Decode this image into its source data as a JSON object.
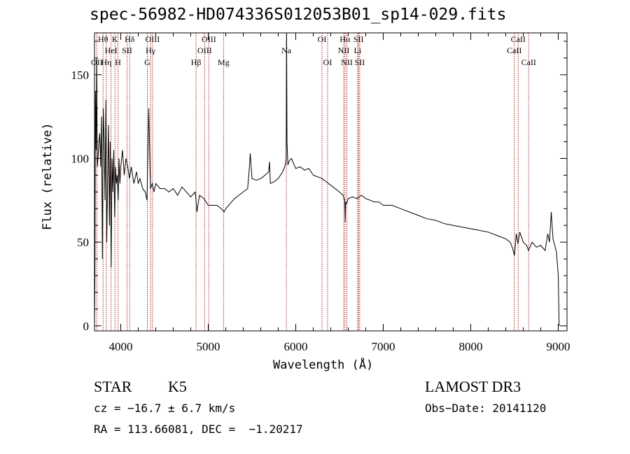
{
  "chart_data": {
    "type": "line",
    "title": "spec-56982-HD074336S012053B01_sp14-029.fits",
    "xlabel": "Wavelength (Å)",
    "ylabel": "Flux (relative)",
    "xlim": [
      3700,
      9100
    ],
    "ylim": [
      -3,
      175
    ],
    "xticks": [
      4000,
      5000,
      6000,
      7000,
      8000,
      9000
    ],
    "yticks": [
      0,
      50,
      100,
      150
    ],
    "grid": false,
    "line_color": "#000000",
    "marker_color": "#b22222",
    "series": [
      {
        "x": [
          3700,
          3705,
          3710,
          3718,
          3725,
          3732,
          3740,
          3750,
          3760,
          3770,
          3780,
          3790,
          3800,
          3810,
          3820,
          3830,
          3840,
          3850,
          3860,
          3870,
          3880,
          3890,
          3900,
          3910,
          3920,
          3930,
          3940,
          3950,
          3960,
          3970,
          3980,
          3990,
          4000,
          4020,
          4040,
          4060,
          4080,
          4100,
          4120,
          4150,
          4180,
          4200,
          4220,
          4250,
          4280,
          4300,
          4320,
          4340,
          4360,
          4380,
          4400,
          4450,
          4500,
          4550,
          4600,
          4650,
          4700,
          4750,
          4800,
          4850,
          4860,
          4870,
          4900,
          4950,
          5000,
          5050,
          5100,
          5150,
          5180,
          5200,
          5250,
          5300,
          5350,
          5400,
          5450,
          5470,
          5480,
          5500,
          5550,
          5600,
          5650,
          5690,
          5700,
          5710,
          5750,
          5800,
          5850,
          5880,
          5890,
          5895,
          5900,
          5910,
          5920,
          5950,
          6000,
          6050,
          6100,
          6150,
          6200,
          6250,
          6300,
          6350,
          6400,
          6450,
          6500,
          6540,
          6560,
          6565,
          6570,
          6580,
          6600,
          6650,
          6700,
          6750,
          6800,
          6850,
          6900,
          6950,
          7000,
          7100,
          7200,
          7300,
          7400,
          7500,
          7600,
          7700,
          7800,
          7900,
          8000,
          8100,
          8200,
          8300,
          8400,
          8450,
          8480,
          8500,
          8520,
          8540,
          8560,
          8600,
          8640,
          8660,
          8700,
          8750,
          8800,
          8850,
          8880,
          8900,
          8920,
          8940,
          8960,
          8980,
          9000,
          9010
        ],
        "y": [
          0,
          30,
          140,
          105,
          160,
          95,
          100,
          110,
          115,
          95,
          125,
          40,
          130,
          110,
          75,
          135,
          50,
          90,
          120,
          60,
          110,
          35,
          100,
          80,
          105,
          65,
          95,
          85,
          90,
          75,
          100,
          85,
          95,
          105,
          90,
          100,
          95,
          88,
          95,
          85,
          92,
          85,
          88,
          82,
          80,
          75,
          130,
          82,
          85,
          80,
          85,
          82,
          82,
          80,
          82,
          78,
          83,
          80,
          77,
          80,
          75,
          68,
          78,
          76,
          72,
          72,
          72,
          70,
          68,
          70,
          73,
          76,
          78,
          80,
          82,
          95,
          103,
          88,
          87,
          88,
          90,
          92,
          98,
          85,
          86,
          88,
          92,
          96,
          100,
          175,
          110,
          96,
          98,
          100,
          94,
          95,
          93,
          94,
          90,
          89,
          88,
          86,
          84,
          82,
          80,
          78,
          75,
          62,
          74,
          73,
          76,
          77,
          76,
          78,
          76,
          75,
          74,
          74,
          72,
          72,
          70,
          68,
          66,
          64,
          63,
          61,
          60,
          59,
          58,
          57,
          56,
          54,
          52,
          50,
          46,
          42,
          55,
          49,
          56,
          50,
          48,
          45,
          50,
          47,
          48,
          45,
          55,
          50,
          68,
          52,
          48,
          44,
          30,
          0
        ]
      }
    ],
    "lines": [
      {
        "wl": 3727,
        "labels": [
          {
            "row": 3,
            "text": "OII"
          }
        ]
      },
      {
        "wl": 3798,
        "labels": [
          {
            "row": 1,
            "text": "Hθ"
          }
        ]
      },
      {
        "wl": 3835,
        "labels": [
          {
            "row": 3,
            "text": "Hη"
          }
        ]
      },
      {
        "wl": 3889,
        "labels": [
          {
            "row": 2,
            "text": "HeI"
          }
        ]
      },
      {
        "wl": 3934,
        "labels": [
          {
            "row": 1,
            "text": "K"
          }
        ]
      },
      {
        "wl": 3969,
        "labels": [
          {
            "row": 3,
            "text": "H"
          }
        ]
      },
      {
        "wl": 4072,
        "labels": [
          {
            "row": 2,
            "text": "SII"
          }
        ]
      },
      {
        "wl": 4102,
        "labels": [
          {
            "row": 1,
            "text": "Hδ"
          }
        ]
      },
      {
        "wl": 4304,
        "labels": [
          {
            "row": 3,
            "text": "G"
          }
        ]
      },
      {
        "wl": 4341,
        "labels": [
          {
            "row": 2,
            "text": "Hγ"
          }
        ]
      },
      {
        "wl": 4363,
        "labels": [
          {
            "row": 1,
            "text": "OIII"
          }
        ]
      },
      {
        "wl": 4861,
        "labels": [
          {
            "row": 3,
            "text": "Hβ"
          }
        ]
      },
      {
        "wl": 4959,
        "labels": [
          {
            "row": 2,
            "text": "OIII"
          }
        ]
      },
      {
        "wl": 5007,
        "labels": [
          {
            "row": 1,
            "text": "OIII"
          }
        ]
      },
      {
        "wl": 5175,
        "labels": [
          {
            "row": 3,
            "text": "Mg"
          }
        ]
      },
      {
        "wl": 5893,
        "labels": [
          {
            "row": 2,
            "text": "Na"
          }
        ]
      },
      {
        "wl": 6300,
        "labels": [
          {
            "row": 1,
            "text": "OI"
          }
        ]
      },
      {
        "wl": 6364,
        "labels": [
          {
            "row": 3,
            "text": "OI"
          }
        ]
      },
      {
        "wl": 6548,
        "labels": [
          {
            "row": 2,
            "text": "NII"
          }
        ]
      },
      {
        "wl": 6563,
        "labels": [
          {
            "row": 1,
            "text": "Hα"
          }
        ]
      },
      {
        "wl": 6584,
        "labels": [
          {
            "row": 3,
            "text": "NII"
          }
        ]
      },
      {
        "wl": 6707,
        "labels": [
          {
            "row": 2,
            "text": "Li"
          }
        ]
      },
      {
        "wl": 6717,
        "labels": [
          {
            "row": 1,
            "text": "SII"
          }
        ]
      },
      {
        "wl": 6731,
        "labels": [
          {
            "row": 3,
            "text": "SII"
          }
        ]
      },
      {
        "wl": 8498,
        "labels": [
          {
            "row": 2,
            "text": "CaII"
          }
        ]
      },
      {
        "wl": 8542,
        "labels": [
          {
            "row": 1,
            "text": "CaII"
          }
        ]
      },
      {
        "wl": 8662,
        "labels": [
          {
            "row": 3,
            "text": "CaII"
          }
        ]
      }
    ]
  },
  "info": {
    "class": "STAR",
    "subclass": "K5",
    "survey": "LAMOST DR3",
    "cz": "cz = −16.7 ± 6.7 km/s",
    "obs_date": "Obs−Date: 20141120",
    "radec": "RA = 113.66081, DEC =  −1.20217"
  }
}
